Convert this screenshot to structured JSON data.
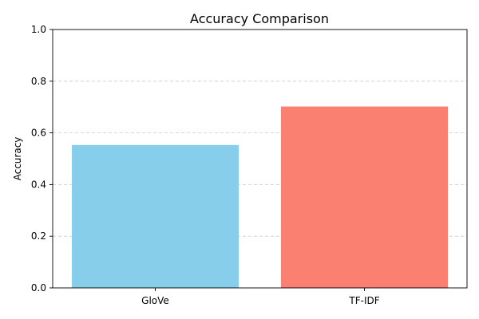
{
  "chart_data": {
    "type": "bar",
    "title": "Accuracy Comparison",
    "xlabel": "",
    "ylabel": "Accuracy",
    "categories": [
      "GloVe",
      "TF-IDF"
    ],
    "values": [
      0.553,
      0.702
    ],
    "colors": [
      "#87ceeb",
      "#fa8072"
    ],
    "ylim": [
      0,
      1.0
    ],
    "yticks": [
      0.0,
      0.2,
      0.4,
      0.6,
      0.8,
      1.0
    ],
    "ytick_labels": [
      "0.0",
      "0.2",
      "0.4",
      "0.6",
      "0.8",
      "1.0"
    ],
    "grid": "y-dashed",
    "legend": "none"
  }
}
